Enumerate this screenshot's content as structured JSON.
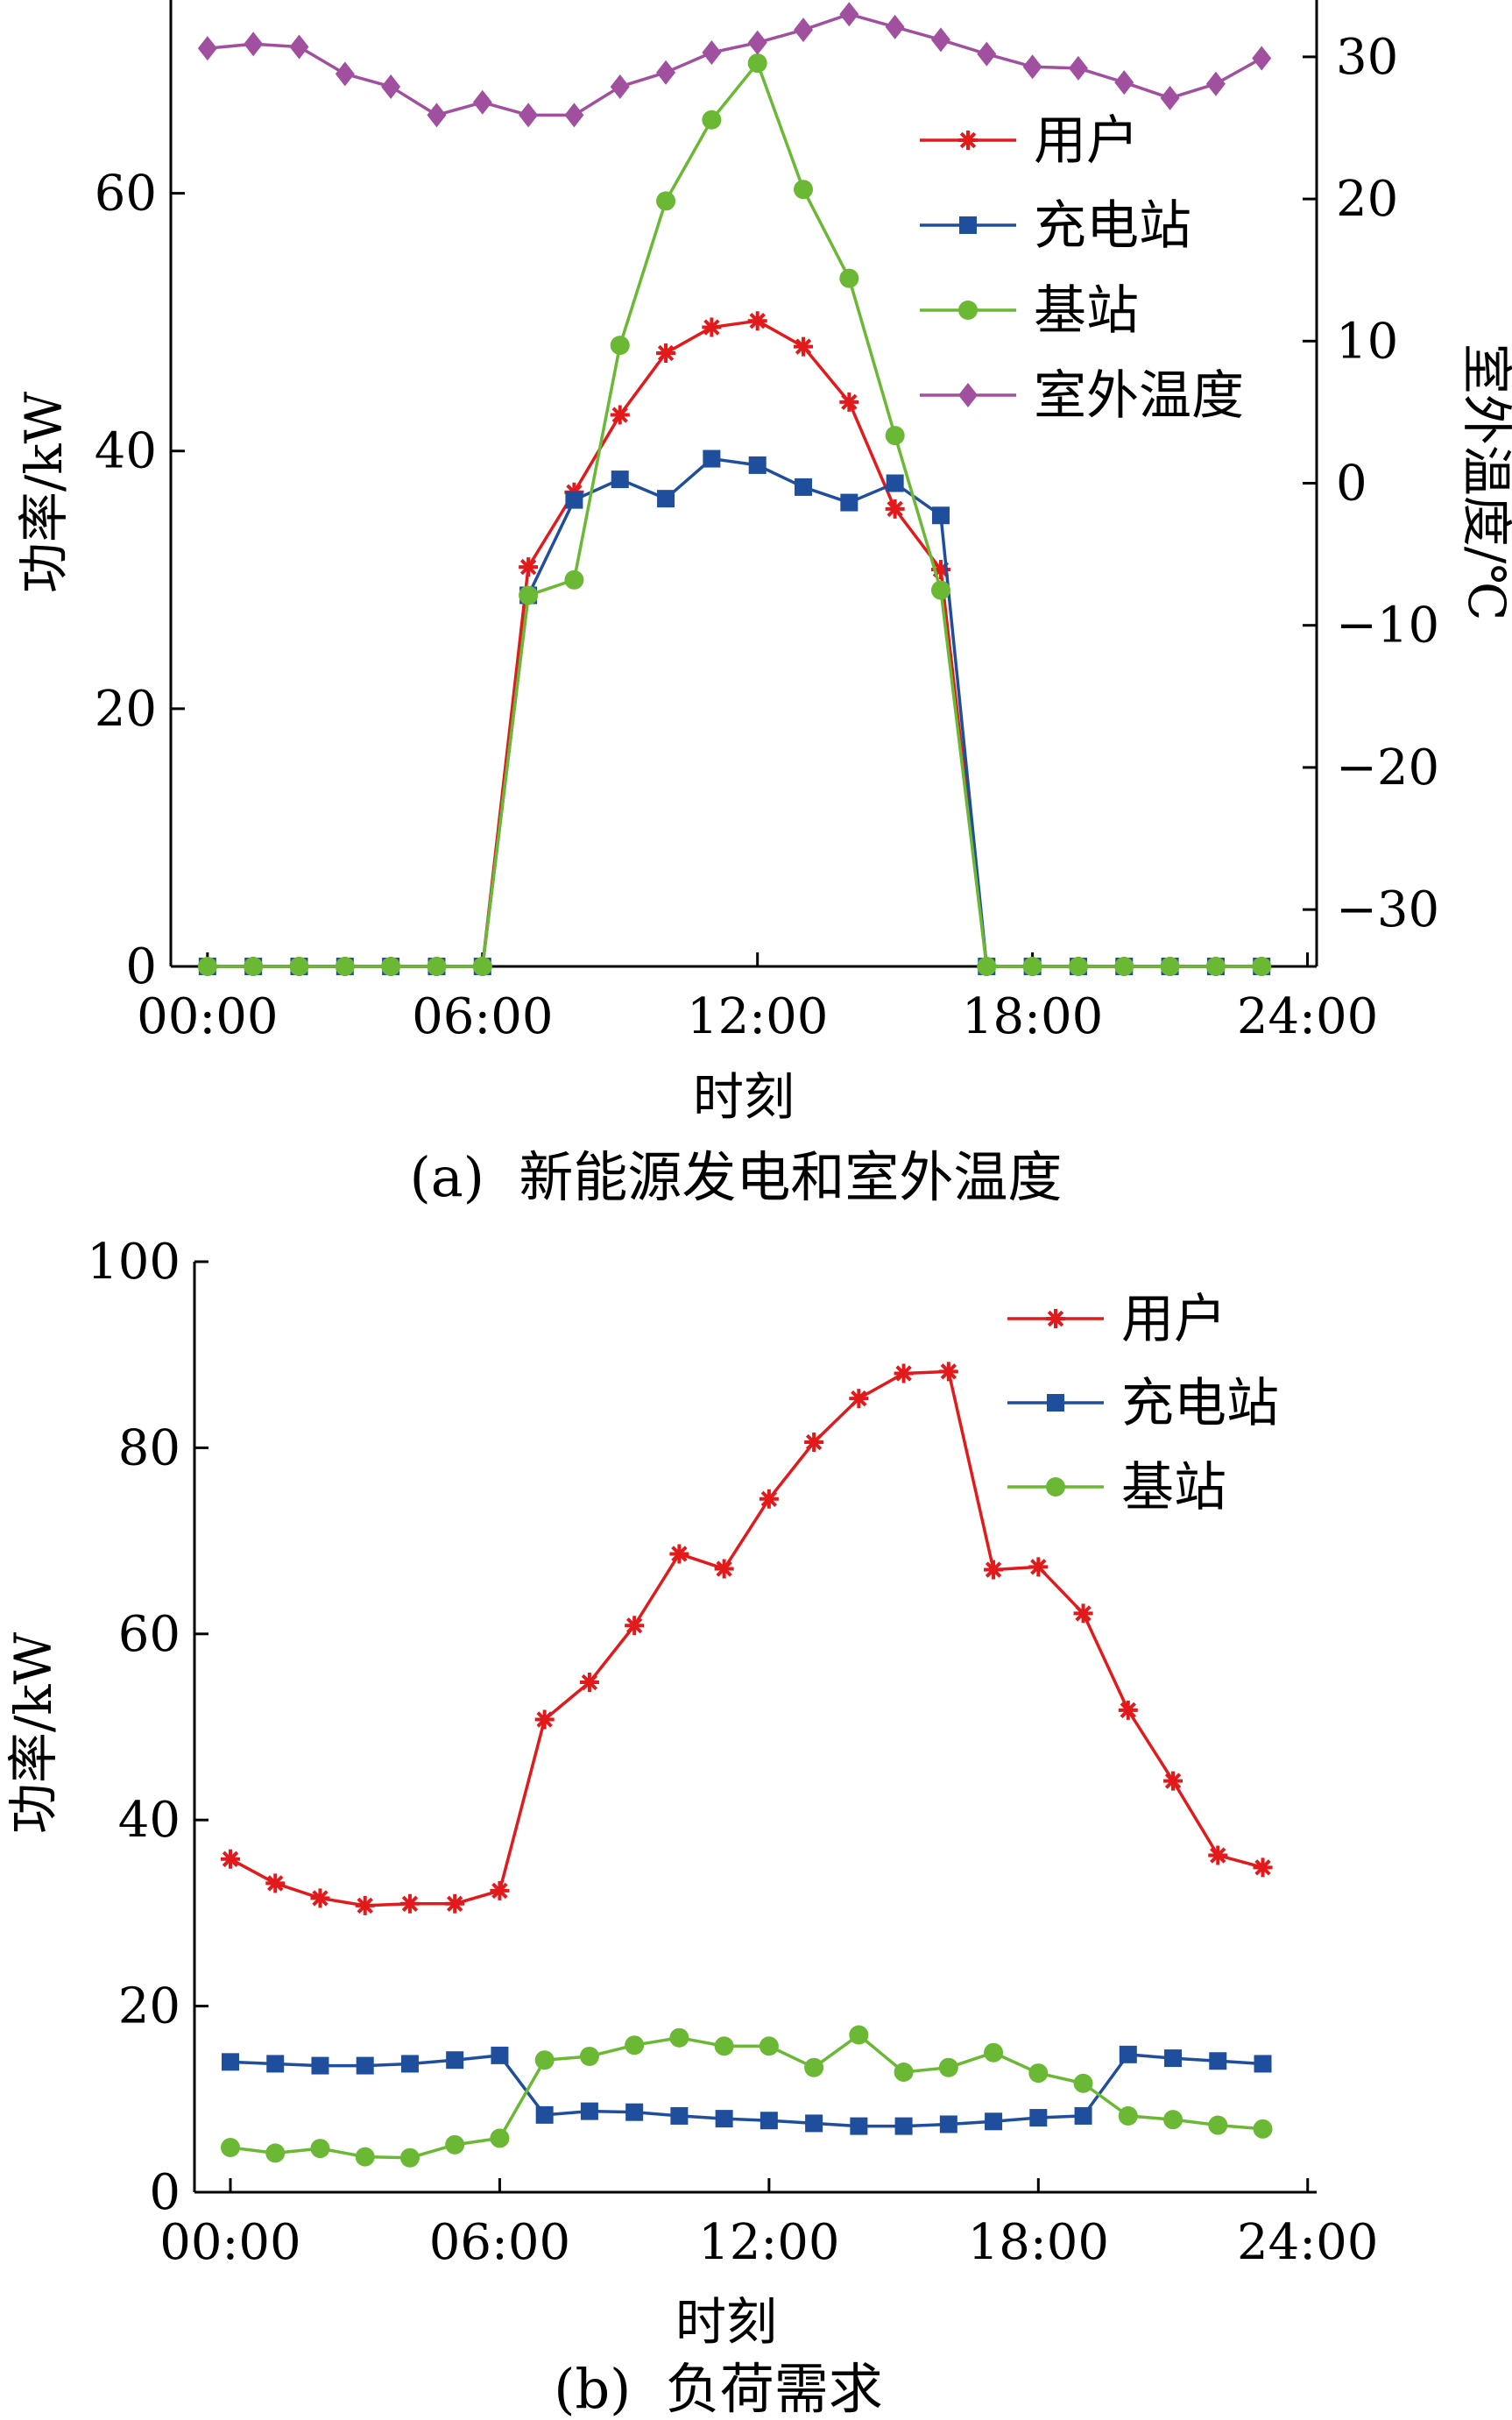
{
  "chart_data": [
    {
      "type": "line",
      "caption": "(a)  新能源发电和室外温度",
      "xlabel": "时刻",
      "ylabel_left": "功率/kW",
      "ylabel_right": "室外温度/℃",
      "x_ticks": [
        "00:00",
        "06:00",
        "12:00",
        "18:00",
        "24:00"
      ],
      "x_tick_values": [
        0,
        6,
        12,
        18,
        24
      ],
      "y_ticks_left": [
        "0",
        "20",
        "40",
        "60"
      ],
      "y_tick_values_left": [
        0,
        20,
        40,
        60
      ],
      "y_ticks_right": [
        "−30",
        "−20",
        "−10",
        "0",
        "10",
        "20",
        "30"
      ],
      "y_tick_values_right": [
        -30,
        -20,
        -10,
        0,
        10,
        20,
        30
      ],
      "xlim": [
        -0.8,
        24.2
      ],
      "ylim": [
        0,
        75
      ],
      "ylim_right": [
        -34,
        34
      ],
      "grid": false,
      "legend_position": "top-right",
      "x": [
        0,
        1,
        2,
        3,
        4,
        5,
        6,
        7,
        8,
        9,
        10,
        11,
        12,
        13,
        14,
        15,
        16,
        17,
        18,
        19,
        20,
        21,
        22,
        23
      ],
      "series": [
        {
          "name": "用户",
          "axis": "left",
          "marker": "star",
          "color": "#e31a1c",
          "values": [
            0,
            0,
            0,
            0,
            0,
            0,
            0,
            31,
            36.8,
            42.8,
            47.6,
            49.6,
            50.1,
            48.1,
            43.8,
            35.5,
            30.8,
            0,
            0,
            0,
            0,
            0,
            0,
            0
          ]
        },
        {
          "name": "充电站",
          "axis": "left",
          "marker": "square",
          "color": "#1f4e9c",
          "values": [
            0,
            0,
            0,
            0,
            0,
            0,
            0,
            28.8,
            36.2,
            37.8,
            36.3,
            39.4,
            38.9,
            37.2,
            36,
            37.5,
            35,
            0,
            0,
            0,
            0,
            0,
            0,
            0
          ]
        },
        {
          "name": "基站",
          "axis": "left",
          "marker": "circle",
          "color": "#6ab834",
          "values": [
            0,
            0,
            0,
            0,
            0,
            0,
            0,
            28.8,
            30,
            48.2,
            59.4,
            65.7,
            70.1,
            60.3,
            53.4,
            41.2,
            29.2,
            0,
            0,
            0,
            0,
            0,
            0,
            0
          ]
        },
        {
          "name": "室外温度",
          "axis": "right",
          "marker": "diamond",
          "color": "#a0509e",
          "values": [
            30.6,
            30.9,
            30.7,
            28.8,
            27.9,
            25.9,
            26.8,
            25.9,
            25.9,
            27.9,
            28.9,
            30.3,
            31,
            31.9,
            33,
            32.1,
            31.2,
            30.2,
            29.3,
            29.2,
            28.2,
            27.1,
            28.1,
            29.9
          ]
        }
      ]
    },
    {
      "type": "line",
      "caption": "(b)  负荷需求",
      "xlabel": "时刻",
      "ylabel": "功率/kW",
      "x_ticks": [
        "00:00",
        "06:00",
        "12:00",
        "18:00",
        "24:00"
      ],
      "x_tick_values": [
        0,
        6,
        12,
        18,
        24
      ],
      "y_ticks": [
        "0",
        "20",
        "40",
        "60",
        "80",
        "100"
      ],
      "y_tick_values": [
        0,
        20,
        40,
        60,
        80,
        100
      ],
      "xlim": [
        -0.8,
        24.2
      ],
      "ylim": [
        0,
        100
      ],
      "grid": false,
      "legend_position": "top-right",
      "x": [
        0,
        1,
        2,
        3,
        4,
        5,
        6,
        7,
        8,
        9,
        10,
        11,
        12,
        13,
        14,
        15,
        16,
        17,
        18,
        19,
        20,
        21,
        22,
        23
      ],
      "series": [
        {
          "name": "用户",
          "marker": "star",
          "color": "#e31a1c",
          "values": [
            35.8,
            33.2,
            31.6,
            30.8,
            31,
            31,
            32.4,
            50.8,
            54.8,
            60.9,
            68.6,
            67,
            74.5,
            80.6,
            85.3,
            88,
            88.2,
            66.9,
            67.2,
            62.2,
            51.8,
            44.2,
            36.2,
            34.9
          ]
        },
        {
          "name": "充电站",
          "marker": "square",
          "color": "#1f4e9c",
          "values": [
            14,
            13.8,
            13.6,
            13.6,
            13.8,
            14.2,
            14.7,
            8.3,
            8.7,
            8.6,
            8.2,
            7.9,
            7.7,
            7.4,
            7.1,
            7.1,
            7.3,
            7.6,
            8,
            8.2,
            14.8,
            14.4,
            14.1,
            13.8
          ]
        },
        {
          "name": "基站",
          "marker": "circle",
          "color": "#6ab834",
          "values": [
            4.8,
            4.2,
            4.7,
            3.8,
            3.7,
            5.1,
            5.8,
            14.2,
            14.6,
            15.8,
            16.6,
            15.7,
            15.7,
            13.4,
            16.9,
            12.9,
            13.4,
            15,
            12.8,
            11.7,
            8.2,
            7.8,
            7.2,
            6.8
          ]
        }
      ]
    }
  ]
}
